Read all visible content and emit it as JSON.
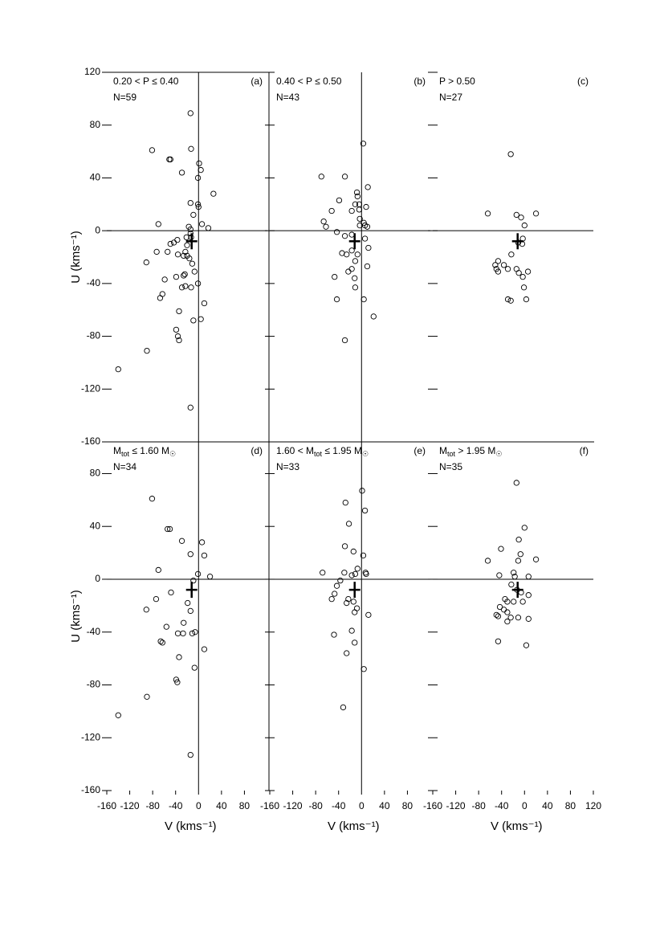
{
  "chart_data": [
    {
      "type": "scatter",
      "panel": "(a)",
      "condition": [
        "0.20 < P ≤ 0.40"
      ],
      "n_label": "N=59",
      "ylabel": "U (kms⁻¹)",
      "zero_v_line": true,
      "xlim": [
        -160,
        120
      ],
      "ylim": [
        -160,
        120
      ],
      "yticks": [
        120,
        80,
        40,
        0,
        -40,
        -80,
        -120,
        -160
      ],
      "mean": {
        "x": -12,
        "y": -8
      },
      "x": [
        -14,
        -13,
        -81,
        -51,
        -49,
        1,
        4,
        -29,
        -1,
        26,
        -14,
        -1,
        0,
        -9,
        -70,
        6,
        17,
        -17,
        -14,
        -14,
        -21,
        -37,
        -43,
        -49,
        -73,
        -54,
        -23,
        -26,
        -20,
        -16,
        -36,
        -91,
        -11,
        -7,
        -24,
        -26,
        -39,
        -59,
        -1,
        -29,
        -23,
        -13,
        -63,
        -67,
        10,
        -34,
        4,
        -9,
        -39,
        -36,
        -34,
        -90,
        -140,
        -14,
        -20,
        -13
      ],
      "y": [
        89,
        62,
        61,
        54,
        54,
        51,
        46,
        44,
        40,
        28,
        21,
        20,
        18,
        12,
        5,
        5,
        2,
        3,
        1,
        -2,
        -5,
        -7,
        -9,
        -10,
        -16,
        -16,
        -16,
        -19,
        -19,
        -21,
        -18,
        -24,
        -25,
        -31,
        -33,
        -34,
        -35,
        -37,
        -40,
        -43,
        -42,
        -43,
        -48,
        -51,
        -55,
        -61,
        -67,
        -68,
        -75,
        -80,
        -83,
        -91,
        -105,
        -134,
        -11,
        -5
      ]
    },
    {
      "type": "scatter",
      "panel": "(b)",
      "condition": [
        "0.40 < P ≤ 0.50"
      ],
      "n_label": "N=43",
      "zero_v_line": true,
      "xlim": [
        -160,
        120
      ],
      "ylim": [
        -160,
        120
      ],
      "mean": {
        "x": -12,
        "y": -8
      },
      "x": [
        3,
        -70,
        -29,
        11,
        -8,
        -7,
        -39,
        -11,
        -4,
        -52,
        -17,
        -4,
        8,
        -66,
        -62,
        -3,
        4,
        -3,
        6,
        10,
        -43,
        -29,
        -17,
        6,
        12,
        -34,
        -26,
        -17,
        -7,
        -11,
        -17,
        -23,
        -47,
        -12,
        10,
        -11,
        -43,
        4,
        21,
        -29
      ],
      "y": [
        66,
        41,
        41,
        33,
        29,
        26,
        23,
        20,
        20,
        15,
        15,
        16,
        18,
        7,
        3,
        9,
        6,
        4,
        4,
        3,
        -1,
        -4,
        -3,
        -6,
        -13,
        -17,
        -18,
        -15,
        -18,
        -23,
        -29,
        -31,
        -35,
        -36,
        -27,
        -43,
        -52,
        -52,
        -65,
        -83
      ]
    },
    {
      "type": "scatter",
      "panel": "(c)",
      "condition": [
        "P > 0.50"
      ],
      "n_label": "N=27",
      "zero_v_line": false,
      "xlim": [
        -160,
        120
      ],
      "ylim": [
        -160,
        120
      ],
      "mean": {
        "x": -12,
        "y": -8
      },
      "x": [
        -24,
        -64,
        -14,
        -6,
        20,
        0,
        -3,
        -11,
        -4,
        -23,
        -46,
        -36,
        -29,
        -51,
        -49,
        -46,
        -14,
        -10,
        -3,
        6,
        -1,
        -29,
        -24,
        3
      ],
      "y": [
        58,
        13,
        12,
        10,
        13,
        4,
        -6,
        -9,
        -10,
        -18,
        -23,
        -26,
        -29,
        -26,
        -29,
        -31,
        -29,
        -32,
        -35,
        -31,
        -43,
        -52,
        -53,
        -52
      ]
    },
    {
      "type": "scatter",
      "panel": "(d)",
      "condition": [
        "M",
        "tot",
        " ≤ 1.60 M",
        "☉"
      ],
      "n_label": "N=34",
      "ylabel": "U (kms⁻¹)",
      "xlabel": "V (kms⁻¹)",
      "zero_v_line": true,
      "xlim": [
        -160,
        120
      ],
      "ylim": [
        -160,
        104
      ],
      "yticks": [
        80,
        40,
        0,
        -40,
        -80,
        -120,
        -160
      ],
      "xticks": [
        -160,
        -120,
        -80,
        -40,
        0,
        40,
        80
      ],
      "mean": {
        "x": -12,
        "y": -8
      },
      "x": [
        -81,
        -54,
        -50,
        -29,
        6,
        10,
        -14,
        -1,
        20,
        -70,
        -9,
        -48,
        -74,
        -19,
        -91,
        -14,
        -26,
        -27,
        -56,
        -36,
        -11,
        -6,
        -66,
        -63,
        10,
        -34,
        -7,
        -39,
        -37,
        -90,
        -140,
        -14
      ],
      "y": [
        61,
        38,
        38,
        29,
        28,
        18,
        19,
        4,
        2,
        7,
        -1,
        -10,
        -15,
        -18,
        -23,
        -24,
        -33,
        -41,
        -36,
        -41,
        -41,
        -40,
        -47,
        -48,
        -53,
        -59,
        -67,
        -76,
        -78,
        -89,
        -103,
        -133
      ]
    },
    {
      "type": "scatter",
      "panel": "(e)",
      "condition": [
        "1.60 < M",
        "tot",
        " ≤ 1.95 M",
        "☉"
      ],
      "n_label": "N=33",
      "xlabel": "V (kms⁻¹)",
      "zero_v_line": true,
      "xlim": [
        -160,
        120
      ],
      "ylim": [
        -160,
        104
      ],
      "xticks": [
        -160,
        -120,
        -80,
        -40,
        0,
        40,
        80
      ],
      "mean": {
        "x": -12,
        "y": -8
      },
      "x": [
        1,
        -28,
        -22,
        6,
        -29,
        -14,
        3,
        -7,
        -11,
        -17,
        -30,
        -68,
        7,
        8,
        -37,
        -43,
        -47,
        -52,
        -23,
        -26,
        -14,
        -8,
        -12,
        12,
        -48,
        -17,
        -12,
        -26,
        4,
        -32
      ],
      "y": [
        67,
        58,
        42,
        52,
        25,
        21,
        18,
        8,
        4,
        3,
        5,
        5,
        5,
        4,
        -1,
        -5,
        -11,
        -15,
        -15,
        -18,
        -17,
        -22,
        -25,
        -27,
        -42,
        -39,
        -48,
        -56,
        -68,
        -97
      ]
    },
    {
      "type": "scatter",
      "panel": "(f)",
      "condition": [
        "M",
        "tot",
        " > 1.95 M",
        "☉"
      ],
      "n_label": "N=35",
      "xlabel": "V (kms⁻¹)",
      "zero_v_line": false,
      "xlim": [
        -160,
        120
      ],
      "ylim": [
        -160,
        104
      ],
      "xticks": [
        -160,
        -120,
        -80,
        -40,
        0,
        40,
        80,
        120
      ],
      "mean": {
        "x": -12,
        "y": -8
      },
      "x": [
        -14,
        0,
        -10,
        -41,
        -7,
        -11,
        20,
        -64,
        -44,
        -19,
        -17,
        7,
        -23,
        -13,
        -6,
        7,
        -34,
        -30,
        -19,
        -3,
        -43,
        -36,
        -30,
        -49,
        -46,
        -24,
        -30,
        -11,
        7,
        -46,
        3
      ],
      "y": [
        73,
        39,
        30,
        23,
        19,
        14,
        15,
        14,
        3,
        5,
        2,
        2,
        -4,
        -8,
        -10,
        -12,
        -15,
        -17,
        -17,
        -17,
        -21,
        -23,
        -25,
        -27,
        -28,
        -29,
        -32,
        -29,
        -30,
        -47,
        -50
      ]
    }
  ]
}
